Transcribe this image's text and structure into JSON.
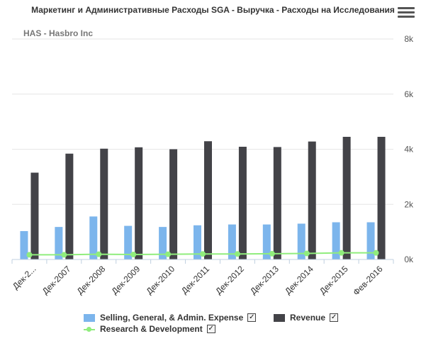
{
  "title": "Маркетинг и Административные Расходы SGA - Выручка - Расходы на Исследования",
  "subtitle": "HAS - Hasbro Inc",
  "menu_icon": "hamburger-menu-icon",
  "colors": {
    "sga": "#7cb5ec",
    "revenue": "#434348",
    "rnd": "#90ed7d",
    "grid": "#e6e6e6"
  },
  "legend": {
    "sga": "Selling, General, & Admin. Expense",
    "revenue": "Revenue",
    "rnd": "Research & Development",
    "check_mark": "✓"
  },
  "chart_data": {
    "type": "bar",
    "categories": [
      "Дек-2...",
      "Дек-2007",
      "Дек-2008",
      "Дек-2009",
      "Дек-2010",
      "Дек-2011",
      "Дек-2012",
      "Дек-2013",
      "Дек-2014",
      "Дек-2015",
      "Фев-2016"
    ],
    "series": [
      {
        "name": "Selling, General, & Admin. Expense",
        "type": "bar",
        "values": [
          1030,
          1180,
          1560,
          1220,
          1180,
          1240,
          1270,
          1270,
          1300,
          1350,
          1350
        ]
      },
      {
        "name": "Revenue",
        "type": "bar",
        "values": [
          3150,
          3840,
          4020,
          4070,
          4000,
          4290,
          4090,
          4080,
          4280,
          4450,
          4450
        ]
      },
      {
        "name": "Research & Development",
        "type": "line",
        "values": [
          170,
          170,
          190,
          180,
          190,
          200,
          200,
          210,
          220,
          240,
          240
        ]
      }
    ],
    "y_ticks": [
      "0k",
      "2k",
      "4k",
      "6k",
      "8k"
    ],
    "ylim": [
      0,
      8000
    ],
    "grid": true,
    "legend_position": "bottom"
  }
}
